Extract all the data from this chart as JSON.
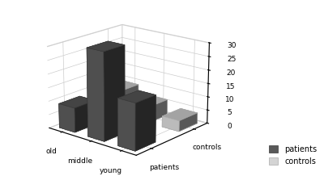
{
  "categories": [
    "old",
    "middle",
    "young"
  ],
  "series": [
    "patients",
    "controls"
  ],
  "values": {
    "patients": [
      9,
      32,
      17
    ],
    "controls": [
      9,
      6,
      4
    ]
  },
  "bar_colors": {
    "patients": "#595959",
    "controls": "#d4d4d4"
  },
  "bar_edge_colors": {
    "patients": "#383838",
    "controls": "#aaaaaa"
  },
  "zlim": [
    0,
    30
  ],
  "zticks": [
    0,
    5,
    10,
    15,
    20,
    25,
    30
  ],
  "legend_labels": [
    "patients",
    "controls"
  ],
  "background_color": "#ffffff",
  "elev": 18,
  "azim": -50,
  "bar_width": 0.55,
  "bar_depth": 0.45
}
